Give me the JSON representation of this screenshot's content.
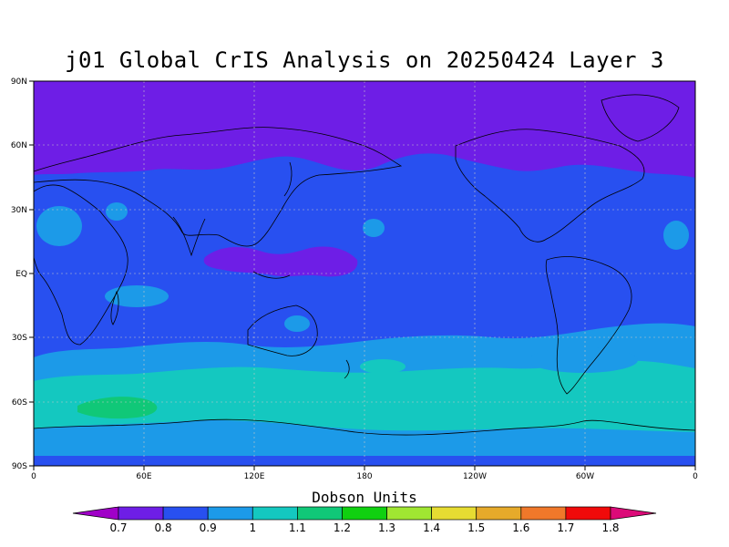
{
  "title": "j01 Global CrIS Analysis on 20250424 Layer 3",
  "lat_labels": [
    "90N",
    "60N",
    "30N",
    "EQ",
    "30S",
    "60S",
    "90S"
  ],
  "lon_labels": [
    "0",
    "60E",
    "120E",
    "180",
    "120W",
    "60W",
    "0"
  ],
  "colorbar": {
    "title": "Dobson Units",
    "levels": [
      "0.7",
      "0.8",
      "0.9",
      "1",
      "1.1",
      "1.2",
      "1.3",
      "1.4",
      "1.5",
      "1.6",
      "1.7",
      "1.8"
    ],
    "colors": [
      "#a000c8",
      "#6e1ee6",
      "#2850f0",
      "#1c9ae8",
      "#14c8c0",
      "#10c878",
      "#10d010",
      "#a0e632",
      "#e6dc32",
      "#e6aa2a",
      "#f0782a",
      "#f00a0a",
      "#dc0a78"
    ]
  },
  "fields": {
    "band_colors": {
      "arctic": "#6e1ee6",
      "midlat": "#2850f0",
      "southern": "#1c9ae8",
      "polar_ring": "#14c8c0",
      "peak": "#10c878"
    }
  }
}
